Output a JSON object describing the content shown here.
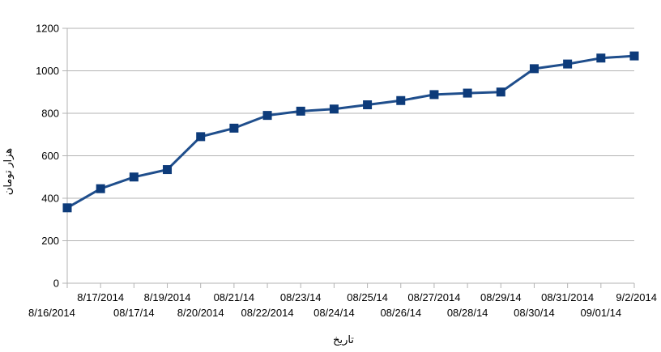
{
  "chart_data": {
    "type": "line",
    "title": "",
    "xlabel": "تاریخ",
    "ylabel": "هزار تومان",
    "categories": [
      "8/16/2014",
      "8/17/2014",
      "08/17/14",
      "8/19/2014",
      "8/20/2014",
      "08/21/14",
      "08/22/2014",
      "08/23/14",
      "08/24/14",
      "08/25/14",
      "08/26/14",
      "08/27/2014",
      "08/28/14",
      "08/29/14",
      "08/30/14",
      "08/31/2014",
      "09/01/14",
      "9/2/2014"
    ],
    "values": [
      355,
      445,
      500,
      535,
      690,
      730,
      790,
      810,
      820,
      840,
      860,
      888,
      895,
      900,
      1010,
      1032,
      1060,
      1070
    ],
    "ylim": [
      0,
      1200
    ],
    "yticks": [
      0,
      200,
      400,
      600,
      800,
      1000,
      1200
    ],
    "grid": "horizontal",
    "legend": "none",
    "colors": {
      "line": "#1f4e8c",
      "marker": "#0d3b7a",
      "grid": "#b3b3b3",
      "axis": "#b3b3b3"
    }
  }
}
